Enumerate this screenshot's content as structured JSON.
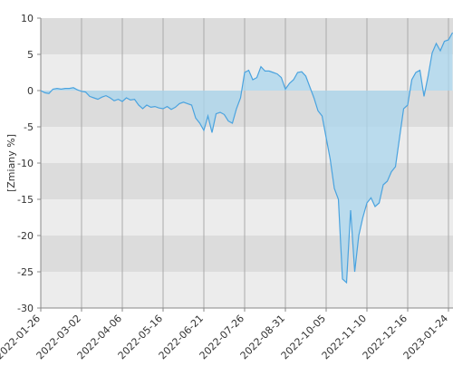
{
  "chart_data": {
    "type": "area",
    "y_label": "[Zmiany %]",
    "categories": [
      "2022-01-26",
      null,
      null,
      null,
      null,
      null,
      null,
      null,
      null,
      null,
      "2022-03-02",
      null,
      null,
      null,
      null,
      null,
      null,
      null,
      null,
      null,
      "2022-04-06",
      null,
      null,
      null,
      null,
      null,
      null,
      null,
      null,
      null,
      "2022-05-16",
      null,
      null,
      null,
      null,
      null,
      null,
      null,
      null,
      null,
      "2022-06-21",
      null,
      null,
      null,
      null,
      null,
      null,
      null,
      null,
      null,
      "2022-07-26",
      null,
      null,
      null,
      null,
      null,
      null,
      null,
      null,
      null,
      "2022-08-31",
      null,
      null,
      null,
      null,
      null,
      null,
      null,
      null,
      null,
      "2022-10-05",
      null,
      null,
      null,
      null,
      null,
      null,
      null,
      null,
      null,
      "2022-11-10",
      null,
      null,
      null,
      null,
      null,
      null,
      null,
      null,
      null,
      "2022-12-16",
      null,
      null,
      null,
      null,
      null,
      null,
      null,
      null,
      null,
      "2023-01-24",
      null
    ],
    "values": [
      0,
      -0.3,
      -0.4,
      0.2,
      0.3,
      0.2,
      0.3,
      0.3,
      0.4,
      0.1,
      -0.1,
      -0.2,
      -0.8,
      -1.0,
      -1.2,
      -0.9,
      -0.7,
      -1.0,
      -1.4,
      -1.2,
      -1.5,
      -1.0,
      -1.3,
      -1.2,
      -2.0,
      -2.5,
      -2.0,
      -2.3,
      -2.2,
      -2.4,
      -2.5,
      -2.2,
      -2.6,
      -2.3,
      -1.8,
      -1.6,
      -1.8,
      -2.0,
      -3.8,
      -4.5,
      -5.5,
      -3.5,
      -5.8,
      -3.2,
      -3.0,
      -3.3,
      -4.2,
      -4.5,
      -2.5,
      -1.0,
      2.5,
      2.8,
      1.5,
      1.8,
      3.3,
      2.7,
      2.7,
      2.5,
      2.3,
      1.8,
      0.2,
      1.0,
      1.5,
      2.5,
      2.6,
      2.0,
      0.5,
      -1.0,
      -2.8,
      -3.5,
      -6.5,
      -9.5,
      -13.5,
      -15,
      -26,
      -26.5,
      -16.5,
      -25,
      -20,
      -17.5,
      -15.5,
      -14.8,
      -16,
      -15.5,
      -13,
      -12.5,
      -11.2,
      -10.5,
      -6.5,
      -2.5,
      -2.0,
      1.5,
      2.5,
      2.8,
      -0.8,
      2.0,
      5.2,
      6.5,
      5.5,
      6.8,
      7.0,
      8.0
    ],
    "color": "#4aa3df",
    "fill": "#a9d5ee",
    "ylim": [
      -30,
      10
    ],
    "yticks": [
      10,
      5,
      0,
      -5,
      -10,
      -15,
      -20,
      -25,
      -30
    ],
    "band_colors": [
      "#dcdcdc",
      "#ececec"
    ]
  }
}
